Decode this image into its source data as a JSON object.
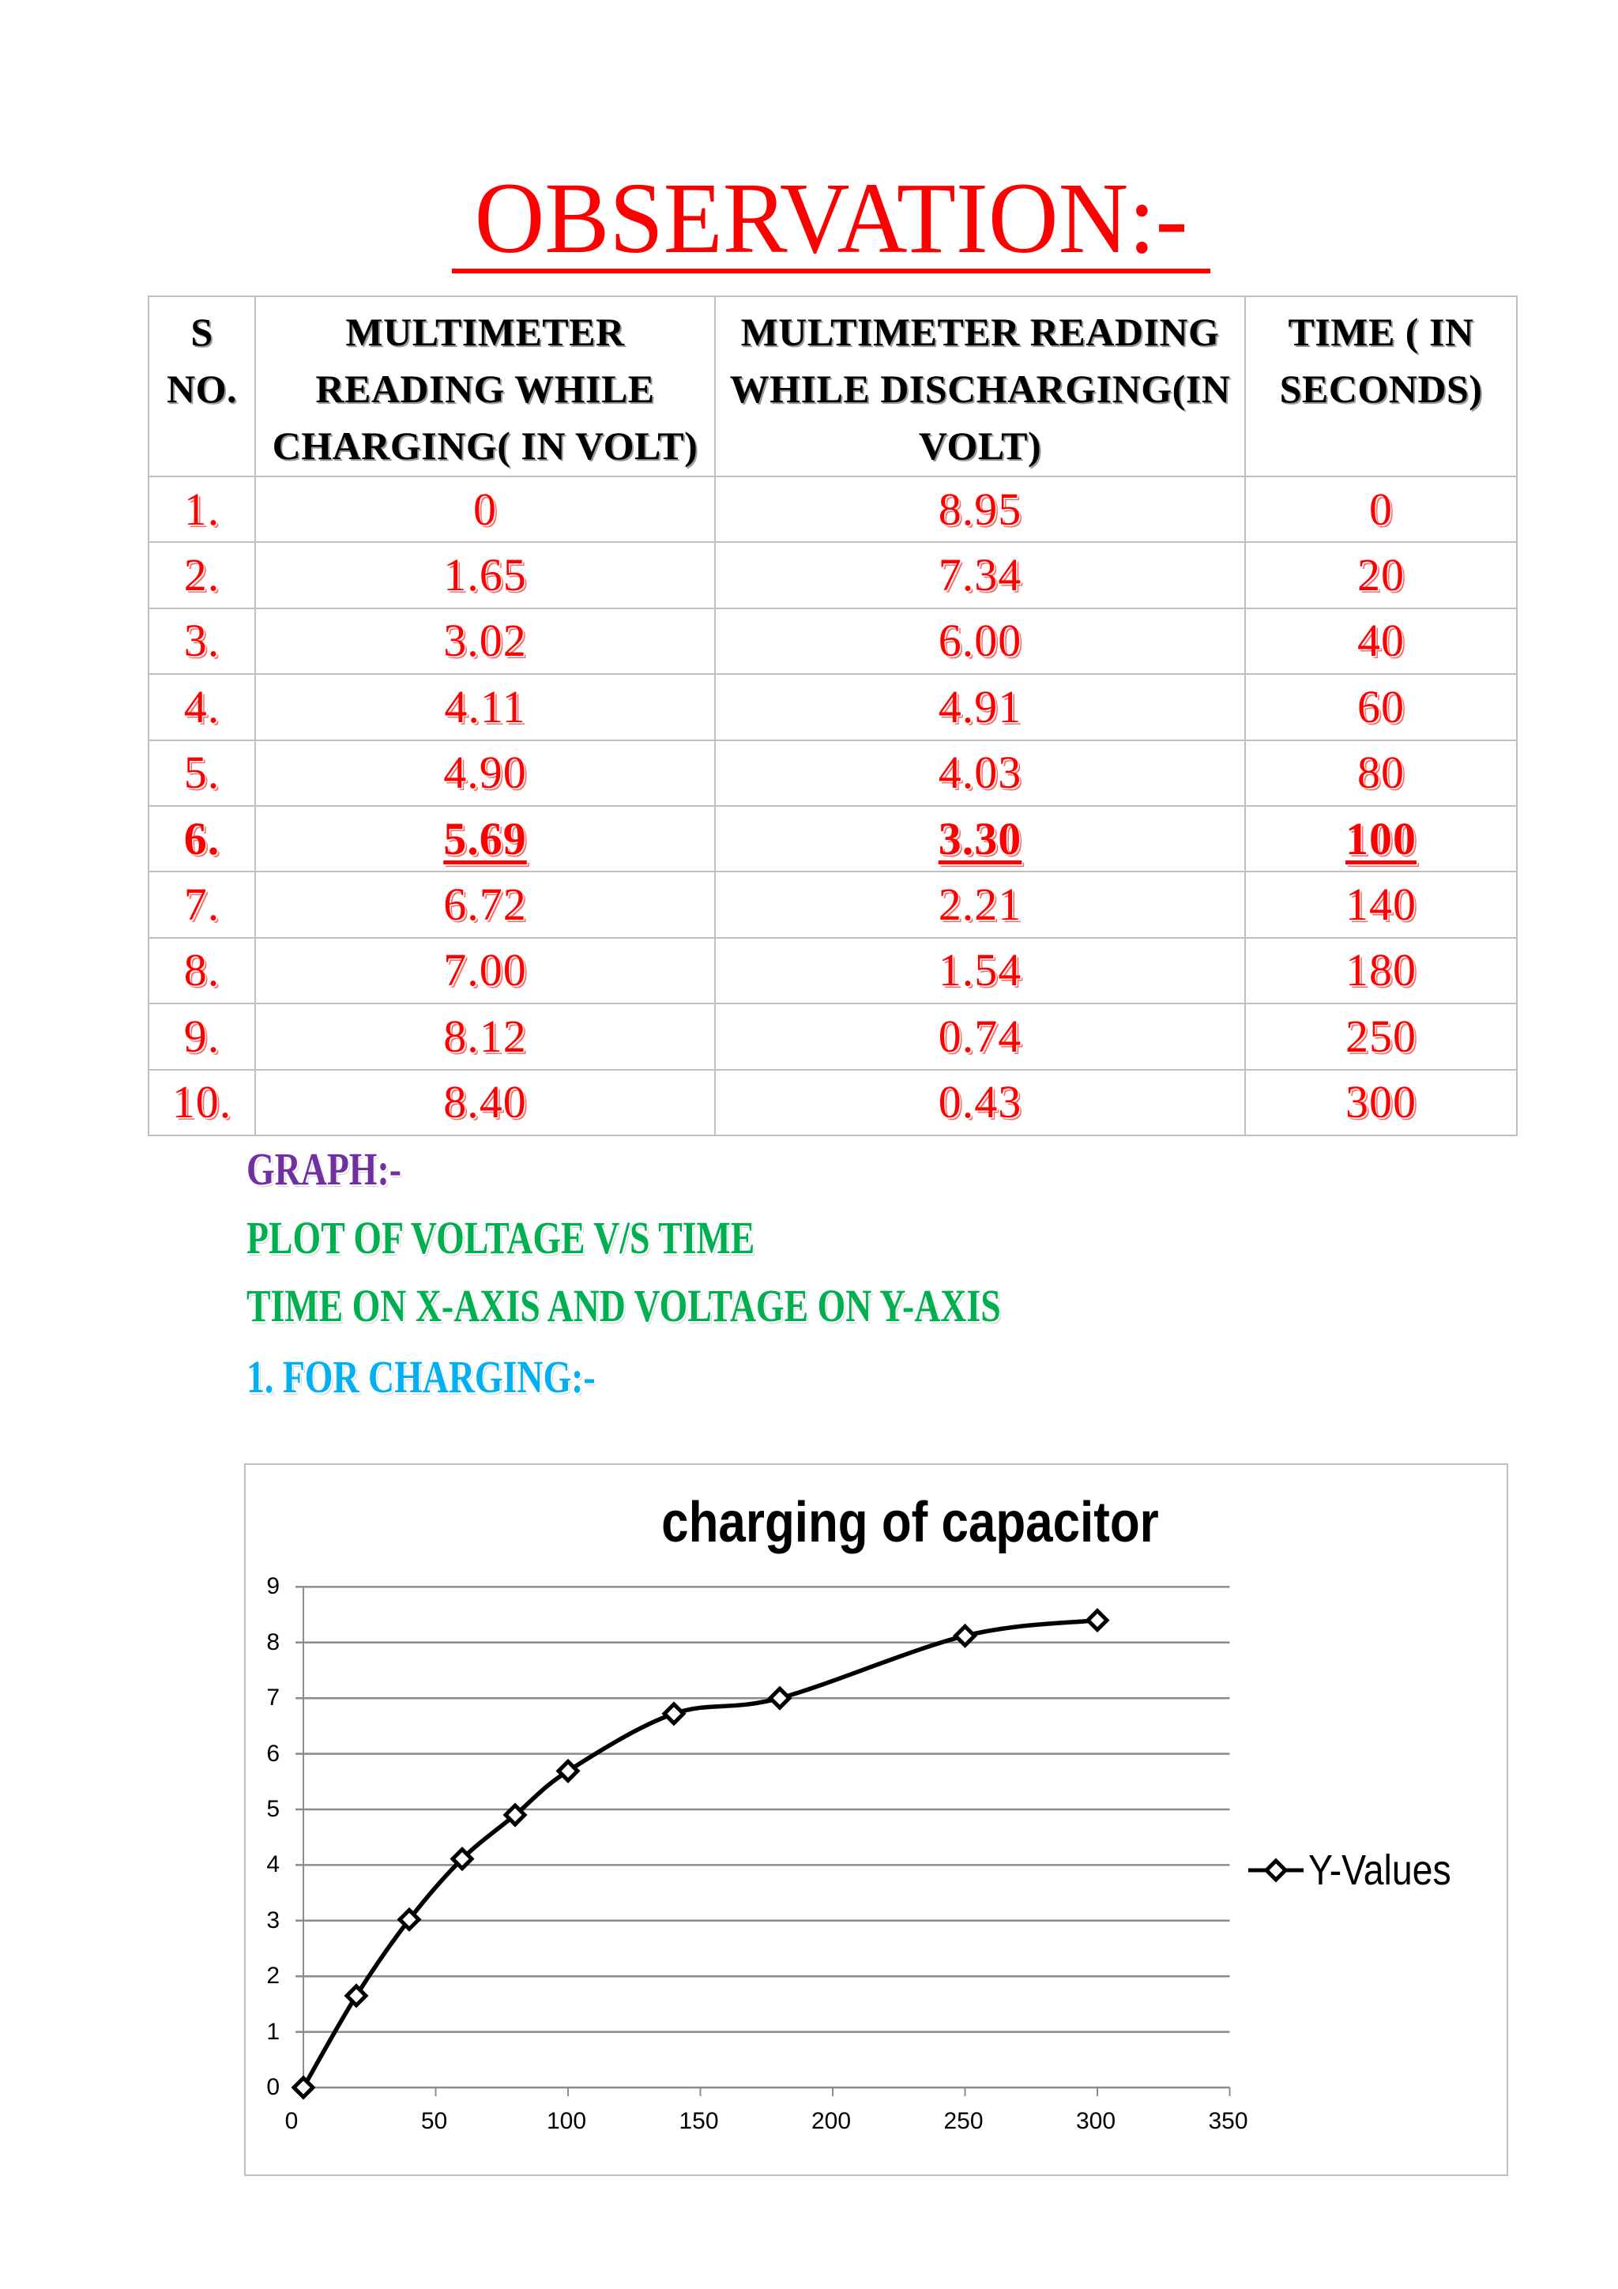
{
  "document": {
    "title": "OBSERVATION:-",
    "colors": {
      "title": "#FF0000",
      "table_values": "#FF0000",
      "graph_heading": "#7030A0",
      "graph_subheading": "#00B050",
      "charging_heading": "#00B0F0",
      "table_border": "#C0C0C4"
    }
  },
  "table": {
    "headers": [
      {
        "lines": [
          "S",
          "NO."
        ]
      },
      {
        "lines": [
          "MULTIMETER",
          "READING WHILE",
          "CHARGING( IN VOLT)"
        ]
      },
      {
        "lines": [
          "MULTIMETER READING",
          "WHILE DISCHARGING(IN",
          "VOLT)"
        ]
      },
      {
        "lines": [
          "TIME ( IN",
          "SECONDS)"
        ]
      }
    ],
    "rows": [
      {
        "sno": "1.",
        "charging": "0",
        "discharging": "8.95",
        "time": "0",
        "highlight": false
      },
      {
        "sno": "2.",
        "charging": "1.65",
        "discharging": "7.34",
        "time": "20",
        "highlight": false
      },
      {
        "sno": "3.",
        "charging": "3.02",
        "discharging": "6.00",
        "time": "40",
        "highlight": false
      },
      {
        "sno": "4.",
        "charging": "4.11",
        "discharging": "4.91",
        "time": "60",
        "highlight": false
      },
      {
        "sno": "5.",
        "charging": "4.90",
        "discharging": "4.03",
        "time": "80",
        "highlight": false
      },
      {
        "sno": "6.",
        "charging": "5.69",
        "discharging": "3.30",
        "time": "100",
        "highlight": true
      },
      {
        "sno": "7.",
        "charging": "6.72",
        "discharging": "2.21",
        "time": "140",
        "highlight": false
      },
      {
        "sno": "8.",
        "charging": "7.00",
        "discharging": "1.54",
        "time": "180",
        "highlight": false
      },
      {
        "sno": "9.",
        "charging": "8.12",
        "discharging": "0.74",
        "time": "250",
        "highlight": false
      },
      {
        "sno": "10.",
        "charging": "8.40",
        "discharging": "0.43",
        "time": "300",
        "highlight": false
      }
    ]
  },
  "graph_section": {
    "heading": "GRAPH:-",
    "line1": "PLOT OF VOLTAGE V/S TIME",
    "line2": "TIME ON X-AXIS AND VOLTAGE ON Y-AXIS",
    "line3": "1. FOR CHARGING:-"
  },
  "chart_data": {
    "type": "scatter",
    "title": "charging of capacitor",
    "xlabel": "",
    "ylabel": "",
    "x": [
      0,
      20,
      40,
      60,
      80,
      100,
      140,
      180,
      250,
      300
    ],
    "series": [
      {
        "name": "Y-Values",
        "values": [
          0,
          1.65,
          3.02,
          4.11,
          4.9,
          5.69,
          6.72,
          7.0,
          8.12,
          8.4
        ],
        "marker": "diamond",
        "line": "smoothed",
        "color": "#000000"
      }
    ],
    "xlim": [
      0,
      350
    ],
    "ylim": [
      0,
      9
    ],
    "xticks": [
      0,
      50,
      100,
      150,
      200,
      250,
      300,
      350
    ],
    "yticks": [
      0,
      1,
      2,
      3,
      4,
      5,
      6,
      7,
      8,
      9
    ],
    "grid": {
      "horizontal": true,
      "vertical": false,
      "color": "#8C8C8C"
    },
    "legend": {
      "position": "right",
      "entries": [
        "Y-Values"
      ]
    }
  }
}
